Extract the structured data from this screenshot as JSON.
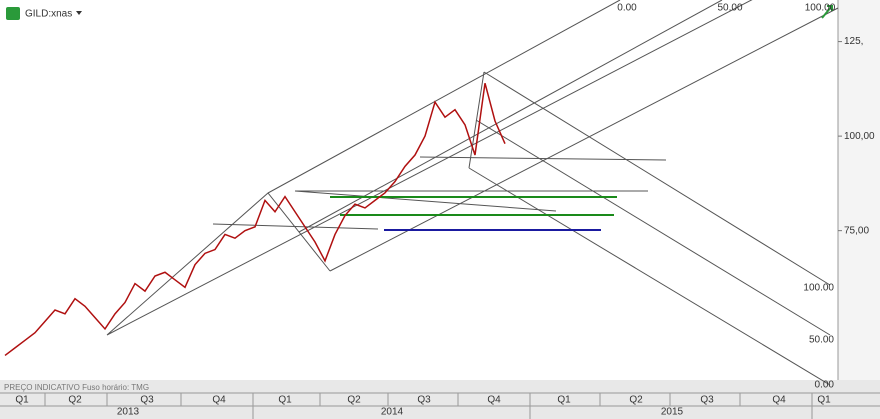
{
  "chart_data": {
    "type": "line",
    "title": "GILD:xnas",
    "footer": "PREÇO INDICATIVO   Fuso horário: TMG",
    "values": [
      42,
      44,
      46,
      48,
      51,
      54,
      53,
      57,
      55,
      52,
      49,
      53,
      56,
      61,
      59,
      63,
      64,
      62,
      60,
      66,
      69,
      70,
      74,
      73,
      75,
      76,
      83,
      80,
      84,
      80,
      76,
      72,
      67,
      74,
      79,
      82,
      81,
      83,
      85,
      88,
      92,
      95,
      100,
      109,
      105,
      107,
      103,
      95,
      114,
      104,
      98
    ],
    "color": "#b01010",
    "ylim": [
      35.5,
      136
    ],
    "yticks": [
      {
        "value": 125,
        "label": "125,"
      },
      {
        "value": 100,
        "label": "100,00"
      },
      {
        "value": 75,
        "label": "75,00"
      }
    ],
    "quarters": [
      "Q1",
      "Q2",
      "Q3",
      "Q4",
      "Q1",
      "Q2",
      "Q3",
      "Q4",
      "Q1",
      "Q2",
      "Q3",
      "Q4",
      "Q1"
    ],
    "years": [
      "2013",
      "2014",
      "2015"
    ],
    "fib_top_labels": [
      "0.00",
      "50.00",
      "100.00"
    ],
    "fib_right_labels": [
      "100.00",
      "50.00",
      "0.00"
    ]
  }
}
